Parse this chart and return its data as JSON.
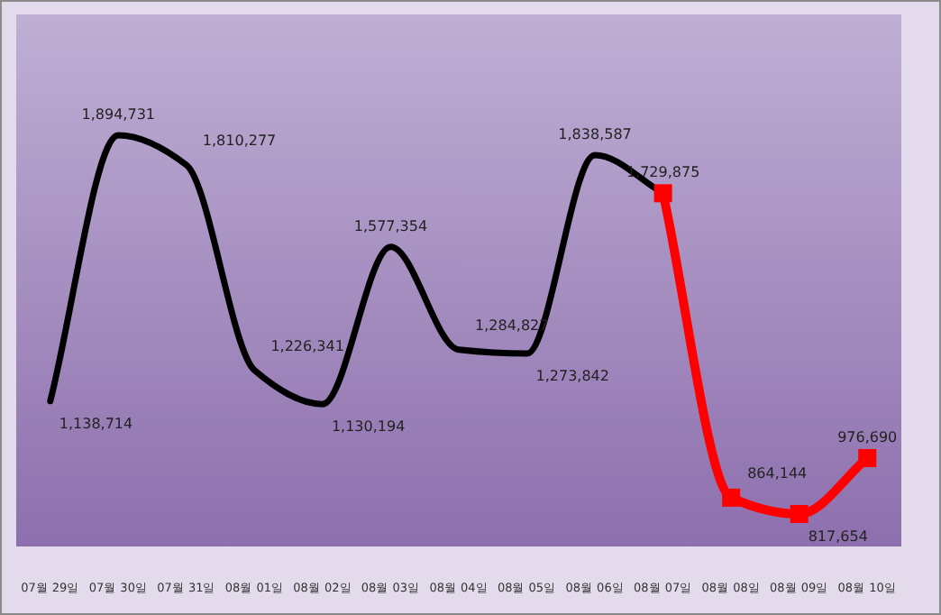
{
  "chart_data": {
    "type": "line",
    "categories": [
      "07월 29일",
      "07월 30일",
      "07월 31일",
      "08월 01일",
      "08월 02일",
      "08월 03일",
      "08월 04일",
      "08월 05일",
      "08월 06일",
      "08월 07일",
      "08월 08일",
      "08월 09일",
      "08월 10일"
    ],
    "series": [
      {
        "color": "#000000",
        "values": [
          1138714,
          1894731,
          1810277,
          1226341,
          1130194,
          1577354,
          1284827,
          1273842,
          1838587,
          1729875,
          null,
          null,
          null
        ],
        "value_labels": [
          "1,138,714",
          "1,894,731",
          "1,810,277",
          "1,226,341",
          "1,130,194",
          "1,577,354",
          "1,284,827",
          "1,273,842",
          "1,838,587",
          null,
          null,
          null,
          null
        ]
      },
      {
        "color": "#ff0000",
        "marker": "square",
        "values": [
          null,
          null,
          null,
          null,
          null,
          null,
          null,
          null,
          null,
          1729875,
          864144,
          817654,
          976690
        ],
        "value_labels": [
          null,
          null,
          null,
          null,
          null,
          null,
          null,
          null,
          null,
          "1,729,875",
          "864,144",
          "817,654",
          "976,690"
        ]
      }
    ],
    "data_labels": true
  }
}
